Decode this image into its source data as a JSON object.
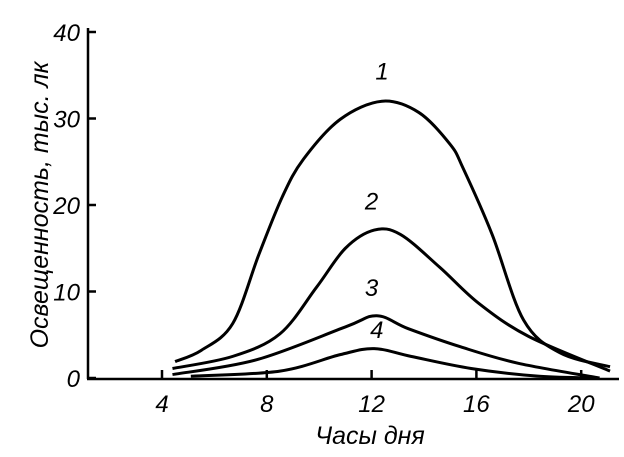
{
  "chart_data": {
    "type": "line",
    "title": "",
    "xlabel": "Часы дня",
    "ylabel": "Освещенность, тыс. лк",
    "xlim": [
      1.7,
      21.5
    ],
    "ylim": [
      0,
      40
    ],
    "xticks": [
      4,
      8,
      12,
      16,
      20
    ],
    "yticks": [
      0,
      10,
      20,
      30,
      40
    ],
    "grid": false,
    "legend": "none",
    "series": [
      {
        "name": "1",
        "label_at": [
          12.4,
          34.5
        ],
        "points": [
          [
            4.5,
            1.9
          ],
          [
            5.5,
            3.2
          ],
          [
            6.7,
            6.3
          ],
          [
            7.7,
            14.3
          ],
          [
            8.6,
            21
          ],
          [
            9.4,
            25.3
          ],
          [
            10.8,
            29.9
          ],
          [
            12.4,
            32
          ],
          [
            13.8,
            30.7
          ],
          [
            15.0,
            27
          ],
          [
            15.5,
            24.2
          ],
          [
            16.6,
            16.6
          ],
          [
            17.8,
            6.7
          ],
          [
            19.2,
            2.9
          ],
          [
            21.1,
            1.3
          ]
        ]
      },
      {
        "name": "2",
        "label_at": [
          12.0,
          19.5
        ],
        "points": [
          [
            4.4,
            1.1
          ],
          [
            6.7,
            2.5
          ],
          [
            8.5,
            5.1
          ],
          [
            9.9,
            10.5
          ],
          [
            11.0,
            15
          ],
          [
            12.1,
            17.1
          ],
          [
            13.1,
            16.6
          ],
          [
            14.6,
            12.8
          ],
          [
            16.1,
            8.6
          ],
          [
            18.0,
            4.8
          ],
          [
            21.1,
            0.8
          ]
        ]
      },
      {
        "name": "3",
        "label_at": [
          12.0,
          9.5
        ],
        "points": [
          [
            4.4,
            0.4
          ],
          [
            7.6,
            2.1
          ],
          [
            11.0,
            5.9
          ],
          [
            12.2,
            7.2
          ],
          [
            13.4,
            5.7
          ],
          [
            15.4,
            3.6
          ],
          [
            17.6,
            1.7
          ],
          [
            20.7,
            0
          ]
        ]
      },
      {
        "name": "4",
        "label_at": [
          12.2,
          4.6
        ],
        "points": [
          [
            5.1,
            0.2
          ],
          [
            8.5,
            0.8
          ],
          [
            10.8,
            2.7
          ],
          [
            12.1,
            3.4
          ],
          [
            13.5,
            2.5
          ],
          [
            15.8,
            1.1
          ],
          [
            18.4,
            0.2
          ],
          [
            20.7,
            0
          ]
        ]
      }
    ]
  }
}
